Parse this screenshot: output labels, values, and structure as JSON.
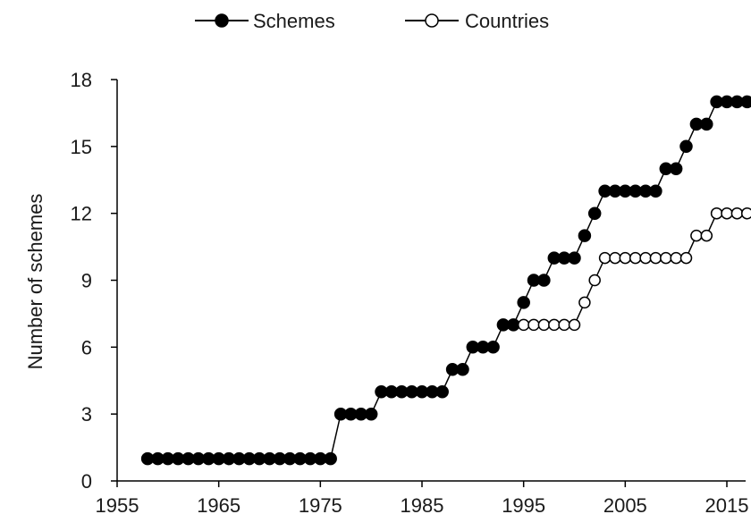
{
  "chart_data": {
    "type": "line",
    "title": "",
    "xlabel": "",
    "ylabel": "Number of schemes",
    "xlim": [
      1955,
      2017
    ],
    "ylim": [
      0,
      18
    ],
    "x_ticks": [
      1955,
      1965,
      1975,
      1985,
      1995,
      2005,
      2015
    ],
    "y_ticks": [
      0,
      3,
      6,
      9,
      12,
      15,
      18
    ],
    "grid": false,
    "legend_position": "top",
    "series": [
      {
        "name": "Schemes",
        "marker": "filled-circle",
        "color": "#000000",
        "points": [
          [
            1958,
            1
          ],
          [
            1959,
            1
          ],
          [
            1960,
            1
          ],
          [
            1961,
            1
          ],
          [
            1962,
            1
          ],
          [
            1963,
            1
          ],
          [
            1964,
            1
          ],
          [
            1965,
            1
          ],
          [
            1966,
            1
          ],
          [
            1967,
            1
          ],
          [
            1968,
            1
          ],
          [
            1969,
            1
          ],
          [
            1970,
            1
          ],
          [
            1971,
            1
          ],
          [
            1972,
            1
          ],
          [
            1973,
            1
          ],
          [
            1974,
            1
          ],
          [
            1975,
            1
          ],
          [
            1976,
            1
          ],
          [
            1977,
            3
          ],
          [
            1978,
            3
          ],
          [
            1979,
            3
          ],
          [
            1980,
            3
          ],
          [
            1981,
            4
          ],
          [
            1982,
            4
          ],
          [
            1983,
            4
          ],
          [
            1984,
            4
          ],
          [
            1985,
            4
          ],
          [
            1986,
            4
          ],
          [
            1987,
            4
          ],
          [
            1988,
            5
          ],
          [
            1989,
            5
          ],
          [
            1990,
            6
          ],
          [
            1991,
            6
          ],
          [
            1992,
            6
          ],
          [
            1993,
            7
          ],
          [
            1994,
            7
          ],
          [
            1995,
            8
          ],
          [
            1996,
            9
          ],
          [
            1997,
            9
          ],
          [
            1998,
            10
          ],
          [
            1999,
            10
          ],
          [
            2000,
            10
          ],
          [
            2001,
            11
          ],
          [
            2002,
            12
          ],
          [
            2003,
            13
          ],
          [
            2004,
            13
          ],
          [
            2005,
            13
          ],
          [
            2006,
            13
          ],
          [
            2007,
            13
          ],
          [
            2008,
            13
          ],
          [
            2009,
            14
          ],
          [
            2010,
            14
          ],
          [
            2011,
            15
          ],
          [
            2012,
            16
          ],
          [
            2013,
            16
          ],
          [
            2014,
            17
          ],
          [
            2015,
            17
          ],
          [
            2016,
            17
          ],
          [
            2017,
            17
          ]
        ]
      },
      {
        "name": "Countries",
        "marker": "open-circle",
        "color": "#000000",
        "points": [
          [
            1995,
            7
          ],
          [
            1996,
            7
          ],
          [
            1997,
            7
          ],
          [
            1998,
            7
          ],
          [
            1999,
            7
          ],
          [
            2000,
            7
          ],
          [
            2001,
            8
          ],
          [
            2002,
            9
          ],
          [
            2003,
            10
          ],
          [
            2004,
            10
          ],
          [
            2005,
            10
          ],
          [
            2006,
            10
          ],
          [
            2007,
            10
          ],
          [
            2008,
            10
          ],
          [
            2009,
            10
          ],
          [
            2010,
            10
          ],
          [
            2011,
            10
          ],
          [
            2012,
            11
          ],
          [
            2013,
            11
          ],
          [
            2014,
            12
          ],
          [
            2015,
            12
          ],
          [
            2016,
            12
          ],
          [
            2017,
            12
          ]
        ]
      }
    ]
  }
}
